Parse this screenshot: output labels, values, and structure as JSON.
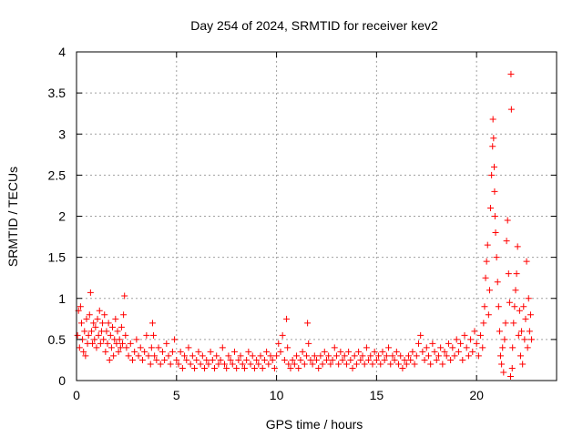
{
  "chart_data": {
    "type": "scatter",
    "title": "Day 254 of 2024, SRMTID for receiver kev2",
    "xlabel": "GPS time / hours",
    "ylabel": "SRMTID / TECUs",
    "xlim": [
      0,
      24
    ],
    "ylim": [
      0,
      4
    ],
    "xticks": [
      0,
      5,
      10,
      15,
      20
    ],
    "xtick_labels": [
      "0",
      "5",
      "10",
      "15",
      "20"
    ],
    "yticks": [
      0,
      0.5,
      1,
      1.5,
      2,
      2.5,
      3,
      3.5,
      4
    ],
    "ytick_labels": [
      "0",
      "0.5",
      "1",
      "1.5",
      "2",
      "2.5",
      "3",
      "3.5",
      "4"
    ],
    "grid": true,
    "marker": "+",
    "series": [
      {
        "name": "SRMTID",
        "color": "#ff0000",
        "points": [
          [
            0.05,
            0.55
          ],
          [
            0.1,
            0.85
          ],
          [
            0.15,
            0.4
          ],
          [
            0.2,
            0.9
          ],
          [
            0.25,
            0.7
          ],
          [
            0.3,
            0.5
          ],
          [
            0.35,
            0.35
          ],
          [
            0.4,
            0.6
          ],
          [
            0.45,
            0.3
          ],
          [
            0.5,
            0.75
          ],
          [
            0.55,
            0.45
          ],
          [
            0.6,
            0.55
          ],
          [
            0.65,
            0.8
          ],
          [
            0.7,
            1.07
          ],
          [
            0.75,
            0.6
          ],
          [
            0.8,
            0.45
          ],
          [
            0.85,
            0.7
          ],
          [
            0.9,
            0.5
          ],
          [
            0.95,
            0.65
          ],
          [
            1.0,
            0.4
          ],
          [
            1.05,
            0.75
          ],
          [
            1.1,
            0.55
          ],
          [
            1.15,
            0.85
          ],
          [
            1.2,
            0.45
          ],
          [
            1.25,
            0.6
          ],
          [
            1.3,
            0.7
          ],
          [
            1.35,
            0.5
          ],
          [
            1.4,
            0.8
          ],
          [
            1.45,
            0.35
          ],
          [
            1.5,
            0.6
          ],
          [
            1.55,
            0.45
          ],
          [
            1.6,
            0.7
          ],
          [
            1.65,
            0.25
          ],
          [
            1.7,
            0.55
          ],
          [
            1.75,
            0.4
          ],
          [
            1.8,
            0.65
          ],
          [
            1.85,
            0.3
          ],
          [
            1.9,
            0.5
          ],
          [
            1.95,
            0.75
          ],
          [
            2.0,
            0.45
          ],
          [
            2.05,
            0.6
          ],
          [
            2.1,
            0.35
          ],
          [
            2.15,
            0.5
          ],
          [
            2.2,
            0.4
          ],
          [
            2.25,
            0.65
          ],
          [
            2.3,
            0.45
          ],
          [
            2.35,
            0.8
          ],
          [
            2.4,
            1.03
          ],
          [
            2.45,
            0.55
          ],
          [
            2.5,
            0.4
          ],
          [
            2.6,
            0.3
          ],
          [
            2.7,
            0.45
          ],
          [
            2.8,
            0.25
          ],
          [
            2.9,
            0.35
          ],
          [
            3.0,
            0.5
          ],
          [
            3.1,
            0.3
          ],
          [
            3.2,
            0.4
          ],
          [
            3.3,
            0.25
          ],
          [
            3.4,
            0.35
          ],
          [
            3.5,
            0.55
          ],
          [
            3.6,
            0.3
          ],
          [
            3.7,
            0.2
          ],
          [
            3.75,
            0.4
          ],
          [
            3.8,
            0.7
          ],
          [
            3.85,
            0.55
          ],
          [
            3.9,
            0.3
          ],
          [
            4.0,
            0.25
          ],
          [
            4.1,
            0.4
          ],
          [
            4.2,
            0.2
          ],
          [
            4.3,
            0.35
          ],
          [
            4.4,
            0.25
          ],
          [
            4.5,
            0.45
          ],
          [
            4.6,
            0.3
          ],
          [
            4.7,
            0.2
          ],
          [
            4.8,
            0.35
          ],
          [
            4.9,
            0.5
          ],
          [
            5.0,
            0.25
          ],
          [
            5.1,
            0.2
          ],
          [
            5.2,
            0.35
          ],
          [
            5.3,
            0.15
          ],
          [
            5.4,
            0.3
          ],
          [
            5.5,
            0.25
          ],
          [
            5.6,
            0.4
          ],
          [
            5.7,
            0.2
          ],
          [
            5.8,
            0.3
          ],
          [
            5.9,
            0.15
          ],
          [
            6.0,
            0.25
          ],
          [
            6.1,
            0.35
          ],
          [
            6.2,
            0.2
          ],
          [
            6.3,
            0.3
          ],
          [
            6.4,
            0.15
          ],
          [
            6.5,
            0.25
          ],
          [
            6.6,
            0.2
          ],
          [
            6.7,
            0.35
          ],
          [
            6.8,
            0.25
          ],
          [
            6.9,
            0.15
          ],
          [
            7.0,
            0.3
          ],
          [
            7.1,
            0.2
          ],
          [
            7.2,
            0.25
          ],
          [
            7.3,
            0.4
          ],
          [
            7.4,
            0.2
          ],
          [
            7.5,
            0.15
          ],
          [
            7.6,
            0.3
          ],
          [
            7.7,
            0.25
          ],
          [
            7.8,
            0.2
          ],
          [
            7.9,
            0.35
          ],
          [
            8.0,
            0.15
          ],
          [
            8.1,
            0.25
          ],
          [
            8.2,
            0.3
          ],
          [
            8.3,
            0.2
          ],
          [
            8.4,
            0.15
          ],
          [
            8.5,
            0.25
          ],
          [
            8.6,
            0.35
          ],
          [
            8.7,
            0.2
          ],
          [
            8.8,
            0.3
          ],
          [
            8.9,
            0.15
          ],
          [
            9.0,
            0.25
          ],
          [
            9.1,
            0.2
          ],
          [
            9.2,
            0.3
          ],
          [
            9.3,
            0.15
          ],
          [
            9.4,
            0.25
          ],
          [
            9.5,
            0.35
          ],
          [
            9.6,
            0.2
          ],
          [
            9.7,
            0.3
          ],
          [
            9.8,
            0.25
          ],
          [
            9.9,
            0.15
          ],
          [
            10.0,
            0.3
          ],
          [
            10.1,
            0.45
          ],
          [
            10.2,
            0.35
          ],
          [
            10.3,
            0.55
          ],
          [
            10.4,
            0.25
          ],
          [
            10.5,
            0.75
          ],
          [
            10.55,
            0.4
          ],
          [
            10.6,
            0.2
          ],
          [
            10.7,
            0.15
          ],
          [
            10.8,
            0.25
          ],
          [
            10.9,
            0.2
          ],
          [
            11.0,
            0.3
          ],
          [
            11.1,
            0.15
          ],
          [
            11.2,
            0.25
          ],
          [
            11.3,
            0.35
          ],
          [
            11.4,
            0.2
          ],
          [
            11.5,
            0.3
          ],
          [
            11.55,
            0.7
          ],
          [
            11.6,
            0.45
          ],
          [
            11.7,
            0.25
          ],
          [
            11.8,
            0.2
          ],
          [
            11.9,
            0.3
          ],
          [
            12.0,
            0.25
          ],
          [
            12.1,
            0.15
          ],
          [
            12.2,
            0.3
          ],
          [
            12.3,
            0.2
          ],
          [
            12.4,
            0.35
          ],
          [
            12.5,
            0.25
          ],
          [
            12.6,
            0.3
          ],
          [
            12.7,
            0.2
          ],
          [
            12.8,
            0.25
          ],
          [
            12.9,
            0.4
          ],
          [
            13.0,
            0.3
          ],
          [
            13.1,
            0.2
          ],
          [
            13.2,
            0.35
          ],
          [
            13.3,
            0.25
          ],
          [
            13.4,
            0.3
          ],
          [
            13.5,
            0.2
          ],
          [
            13.6,
            0.35
          ],
          [
            13.7,
            0.25
          ],
          [
            13.8,
            0.15
          ],
          [
            13.9,
            0.3
          ],
          [
            14.0,
            0.2
          ],
          [
            14.1,
            0.35
          ],
          [
            14.2,
            0.25
          ],
          [
            14.3,
            0.3
          ],
          [
            14.4,
            0.2
          ],
          [
            14.5,
            0.4
          ],
          [
            14.6,
            0.25
          ],
          [
            14.7,
            0.3
          ],
          [
            14.8,
            0.2
          ],
          [
            14.9,
            0.35
          ],
          [
            15.0,
            0.25
          ],
          [
            15.1,
            0.3
          ],
          [
            15.2,
            0.2
          ],
          [
            15.3,
            0.35
          ],
          [
            15.4,
            0.25
          ],
          [
            15.5,
            0.3
          ],
          [
            15.6,
            0.4
          ],
          [
            15.7,
            0.2
          ],
          [
            15.8,
            0.3
          ],
          [
            15.9,
            0.25
          ],
          [
            16.0,
            0.35
          ],
          [
            16.1,
            0.2
          ],
          [
            16.2,
            0.3
          ],
          [
            16.3,
            0.15
          ],
          [
            16.4,
            0.25
          ],
          [
            16.5,
            0.2
          ],
          [
            16.6,
            0.3
          ],
          [
            16.7,
            0.25
          ],
          [
            16.8,
            0.35
          ],
          [
            16.9,
            0.2
          ],
          [
            17.0,
            0.3
          ],
          [
            17.1,
            0.45
          ],
          [
            17.2,
            0.55
          ],
          [
            17.3,
            0.35
          ],
          [
            17.4,
            0.25
          ],
          [
            17.5,
            0.4
          ],
          [
            17.6,
            0.3
          ],
          [
            17.7,
            0.2
          ],
          [
            17.8,
            0.45
          ],
          [
            17.9,
            0.35
          ],
          [
            18.0,
            0.25
          ],
          [
            18.1,
            0.3
          ],
          [
            18.2,
            0.4
          ],
          [
            18.3,
            0.2
          ],
          [
            18.4,
            0.35
          ],
          [
            18.5,
            0.3
          ],
          [
            18.6,
            0.45
          ],
          [
            18.7,
            0.25
          ],
          [
            18.8,
            0.4
          ],
          [
            18.9,
            0.3
          ],
          [
            19.0,
            0.5
          ],
          [
            19.1,
            0.35
          ],
          [
            19.2,
            0.45
          ],
          [
            19.3,
            0.25
          ],
          [
            19.4,
            0.55
          ],
          [
            19.5,
            0.4
          ],
          [
            19.6,
            0.3
          ],
          [
            19.7,
            0.5
          ],
          [
            19.8,
            0.35
          ],
          [
            19.9,
            0.6
          ],
          [
            20.0,
            0.45
          ],
          [
            20.1,
            0.3
          ],
          [
            20.2,
            0.55
          ],
          [
            20.3,
            0.4
          ],
          [
            20.35,
            0.7
          ],
          [
            20.4,
            0.9
          ],
          [
            20.45,
            1.25
          ],
          [
            20.5,
            1.45
          ],
          [
            20.55,
            1.65
          ],
          [
            20.6,
            0.8
          ],
          [
            20.65,
            1.1
          ],
          [
            20.7,
            2.1
          ],
          [
            20.75,
            2.5
          ],
          [
            20.8,
            2.85
          ],
          [
            20.82,
            3.18
          ],
          [
            20.85,
            2.95
          ],
          [
            20.88,
            2.6
          ],
          [
            20.9,
            2.3
          ],
          [
            20.92,
            2.0
          ],
          [
            20.95,
            1.8
          ],
          [
            21.0,
            1.5
          ],
          [
            21.05,
            1.2
          ],
          [
            21.1,
            0.9
          ],
          [
            21.15,
            0.6
          ],
          [
            21.2,
            0.3
          ],
          [
            21.25,
            0.2
          ],
          [
            21.3,
            0.4
          ],
          [
            21.35,
            0.1
          ],
          [
            21.4,
            0.5
          ],
          [
            21.45,
            0.7
          ],
          [
            21.5,
            1.7
          ],
          [
            21.55,
            1.95
          ],
          [
            21.6,
            1.3
          ],
          [
            21.65,
            0.95
          ],
          [
            21.7,
            0.05
          ],
          [
            21.72,
            3.73
          ],
          [
            21.74,
            3.3
          ],
          [
            21.78,
            0.15
          ],
          [
            21.8,
            0.4
          ],
          [
            21.85,
            0.7
          ],
          [
            21.9,
            0.9
          ],
          [
            21.95,
            1.1
          ],
          [
            22.0,
            1.3
          ],
          [
            22.05,
            1.63
          ],
          [
            22.1,
            0.55
          ],
          [
            22.15,
            0.85
          ],
          [
            22.2,
            0.3
          ],
          [
            22.25,
            0.6
          ],
          [
            22.3,
            0.2
          ],
          [
            22.35,
            0.9
          ],
          [
            22.4,
            0.5
          ],
          [
            22.45,
            0.75
          ],
          [
            22.5,
            1.45
          ],
          [
            22.55,
            0.4
          ],
          [
            22.6,
            1.0
          ],
          [
            22.65,
            0.6
          ],
          [
            22.7,
            0.8
          ],
          [
            22.75,
            0.5
          ]
        ]
      }
    ]
  }
}
